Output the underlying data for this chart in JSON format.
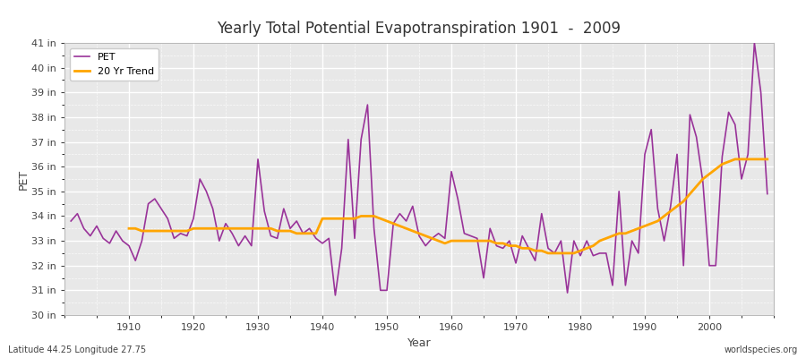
{
  "title": "Yearly Total Potential Evapotranspiration 1901  -  2009",
  "xlabel": "Year",
  "ylabel": "PET",
  "subtitle": "Latitude 44.25 Longitude 27.75",
  "watermark": "worldspecies.org",
  "ylim": [
    30,
    41
  ],
  "yticks": [
    30,
    31,
    32,
    33,
    34,
    35,
    36,
    37,
    38,
    39,
    40,
    41
  ],
  "ytick_labels": [
    "30 in",
    "31 in",
    "32 in",
    "33 in",
    "34 in",
    "35 in",
    "36 in",
    "37 in",
    "38 in",
    "39 in",
    "40 in",
    "41 in"
  ],
  "pet_color": "#993399",
  "trend_color": "#FFA500",
  "bg_color": "#ffffff",
  "plot_bg_color": "#e8e8e8",
  "legend_pet": "PET",
  "legend_trend": "20 Yr Trend",
  "years": [
    1901,
    1902,
    1903,
    1904,
    1905,
    1906,
    1907,
    1908,
    1909,
    1910,
    1911,
    1912,
    1913,
    1914,
    1915,
    1916,
    1917,
    1918,
    1919,
    1920,
    1921,
    1922,
    1923,
    1924,
    1925,
    1926,
    1927,
    1928,
    1929,
    1930,
    1931,
    1932,
    1933,
    1934,
    1935,
    1936,
    1937,
    1938,
    1939,
    1940,
    1941,
    1942,
    1943,
    1944,
    1945,
    1946,
    1947,
    1948,
    1949,
    1950,
    1951,
    1952,
    1953,
    1954,
    1955,
    1956,
    1957,
    1958,
    1959,
    1960,
    1961,
    1962,
    1963,
    1964,
    1965,
    1966,
    1967,
    1968,
    1969,
    1970,
    1971,
    1972,
    1973,
    1974,
    1975,
    1976,
    1977,
    1978,
    1979,
    1980,
    1981,
    1982,
    1983,
    1984,
    1985,
    1986,
    1987,
    1988,
    1989,
    1990,
    1991,
    1992,
    1993,
    1994,
    1995,
    1996,
    1997,
    1998,
    1999,
    2000,
    2001,
    2002,
    2003,
    2004,
    2005,
    2006,
    2007,
    2008,
    2009
  ],
  "pet_values": [
    33.8,
    34.1,
    33.5,
    33.2,
    33.6,
    33.1,
    32.9,
    33.4,
    33.0,
    32.8,
    32.2,
    33.0,
    34.5,
    34.7,
    34.3,
    33.9,
    33.1,
    33.3,
    33.2,
    33.9,
    35.5,
    35.0,
    34.3,
    33.0,
    33.7,
    33.3,
    32.8,
    33.2,
    32.8,
    36.3,
    34.2,
    33.2,
    33.1,
    34.3,
    33.5,
    33.8,
    33.3,
    33.5,
    33.1,
    32.9,
    33.1,
    30.8,
    32.7,
    37.1,
    33.1,
    37.1,
    38.5,
    33.5,
    31.0,
    31.0,
    33.7,
    34.1,
    33.8,
    34.4,
    33.2,
    32.8,
    33.1,
    33.3,
    33.1,
    35.8,
    34.7,
    33.3,
    33.2,
    33.1,
    31.5,
    33.5,
    32.8,
    32.7,
    33.0,
    32.1,
    33.2,
    32.7,
    32.2,
    34.1,
    32.7,
    32.5,
    33.0,
    30.9,
    33.0,
    32.4,
    33.0,
    32.4,
    32.5,
    32.5,
    31.2,
    35.0,
    31.2,
    33.0,
    32.5,
    36.5,
    37.5,
    34.3,
    33.0,
    34.4,
    36.5,
    32.0,
    38.1,
    37.2,
    35.4,
    32.0,
    32.0,
    36.4,
    38.2,
    37.7,
    35.5,
    36.5,
    41.0,
    39.0,
    34.9
  ],
  "trend_years": [
    1910,
    1911,
    1912,
    1913,
    1914,
    1915,
    1916,
    1917,
    1918,
    1919,
    1920,
    1921,
    1922,
    1923,
    1924,
    1925,
    1926,
    1927,
    1928,
    1929,
    1930,
    1931,
    1932,
    1933,
    1934,
    1935,
    1936,
    1937,
    1938,
    1939,
    1940,
    1941,
    1942,
    1943,
    1944,
    1945,
    1946,
    1947,
    1948,
    1949,
    1950,
    1951,
    1952,
    1953,
    1954,
    1955,
    1956,
    1957,
    1958,
    1959,
    1960,
    1961,
    1962,
    1963,
    1964,
    1965,
    1966,
    1967,
    1968,
    1969,
    1970,
    1971,
    1972,
    1973,
    1974,
    1975,
    1976,
    1977,
    1978,
    1979,
    1980,
    1981,
    1982,
    1983,
    1984,
    1985,
    1986,
    1987,
    1988,
    1989,
    1990,
    1991,
    1992,
    1993,
    1994,
    1995,
    1996,
    1997,
    1998,
    1999,
    2000,
    2001,
    2002,
    2003,
    2004,
    2005,
    2006,
    2007,
    2008,
    2009
  ],
  "trend_values": [
    33.5,
    33.5,
    33.4,
    33.4,
    33.4,
    33.4,
    33.4,
    33.4,
    33.4,
    33.4,
    33.5,
    33.5,
    33.5,
    33.5,
    33.5,
    33.5,
    33.5,
    33.5,
    33.5,
    33.5,
    33.5,
    33.5,
    33.5,
    33.4,
    33.4,
    33.4,
    33.3,
    33.3,
    33.3,
    33.3,
    33.9,
    33.9,
    33.9,
    33.9,
    33.9,
    33.9,
    34.0,
    34.0,
    34.0,
    33.9,
    33.8,
    33.7,
    33.6,
    33.5,
    33.4,
    33.3,
    33.2,
    33.1,
    33.0,
    32.9,
    33.0,
    33.0,
    33.0,
    33.0,
    33.0,
    33.0,
    33.0,
    32.9,
    32.9,
    32.8,
    32.8,
    32.7,
    32.7,
    32.6,
    32.6,
    32.5,
    32.5,
    32.5,
    32.5,
    32.5,
    32.6,
    32.7,
    32.8,
    33.0,
    33.1,
    33.2,
    33.3,
    33.3,
    33.4,
    33.5,
    33.6,
    33.7,
    33.8,
    34.0,
    34.2,
    34.4,
    34.6,
    34.9,
    35.2,
    35.5,
    35.7,
    35.9,
    36.1,
    36.2,
    36.3,
    36.3,
    36.3,
    36.3,
    36.3,
    36.3
  ]
}
